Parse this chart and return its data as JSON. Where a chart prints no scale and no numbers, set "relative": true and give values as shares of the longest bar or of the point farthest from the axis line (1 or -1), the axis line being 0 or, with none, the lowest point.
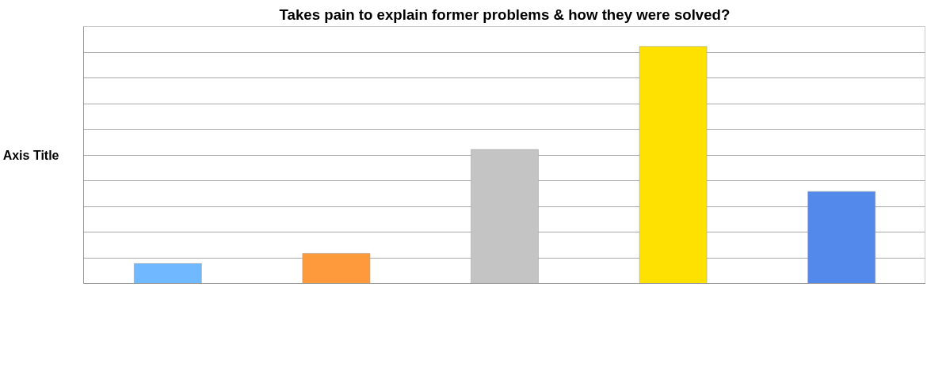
{
  "chart_data": {
    "type": "bar",
    "title": "Takes pain to explain former problems & how they were solved?",
    "ylabel": "Axis Title",
    "categories": [
      null,
      null,
      null,
      null,
      null
    ],
    "values": [
      0.084,
      0.127,
      0.565,
      1,
      0.388
    ],
    "colors": [
      "#70b8ff",
      "#ff9a3c",
      "#c4c4c4",
      "#ffe100",
      "#5389eb"
    ],
    "relative": true,
    "grid": true
  }
}
